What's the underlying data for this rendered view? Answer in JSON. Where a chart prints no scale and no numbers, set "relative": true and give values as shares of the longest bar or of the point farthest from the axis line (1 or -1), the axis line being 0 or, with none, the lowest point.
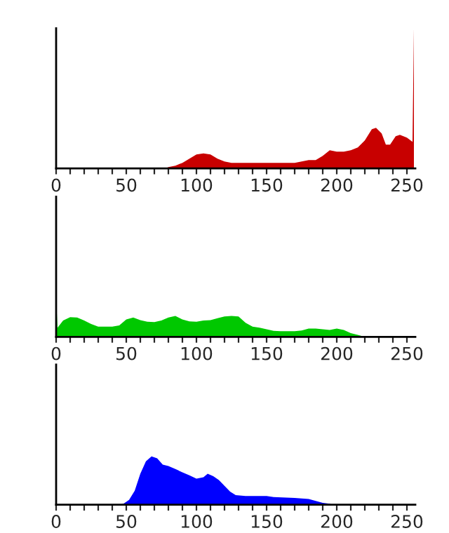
{
  "chart_data": [
    {
      "type": "area",
      "relative": true,
      "xlim": [
        0,
        256
      ],
      "xticks": [
        0,
        {
          "value": 10,
          "label": null
        },
        {
          "value": 20,
          "label": null
        },
        {
          "value": 30,
          "label": null
        },
        {
          "value": 40,
          "label": null
        },
        50,
        {
          "value": 60,
          "label": null
        },
        {
          "value": 70,
          "label": null
        },
        {
          "value": 80,
          "label": null
        },
        {
          "value": 90,
          "label": null
        },
        100,
        {
          "value": 110,
          "label": null
        },
        {
          "value": 120,
          "label": null
        },
        {
          "value": 130,
          "label": null
        },
        {
          "value": 140,
          "label": null
        },
        150,
        {
          "value": 160,
          "label": null
        },
        {
          "value": 170,
          "label": null
        },
        {
          "value": 180,
          "label": null
        },
        {
          "value": 190,
          "label": null
        },
        200,
        {
          "value": 210,
          "label": null
        },
        {
          "value": 220,
          "label": null
        },
        {
          "value": 230,
          "label": null
        },
        {
          "value": 240,
          "label": null
        },
        250
      ],
      "series": [
        {
          "color": "#c80000",
          "x": [
            0,
            78,
            80,
            85,
            90,
            95,
            100,
            105,
            110,
            115,
            120,
            125,
            130,
            140,
            150,
            170,
            180,
            185,
            190,
            195,
            200,
            205,
            210,
            215,
            220,
            225,
            228,
            232,
            235,
            238,
            242,
            245,
            250,
            254,
            255
          ],
          "values": [
            0,
            0,
            0.01,
            0.02,
            0.04,
            0.07,
            0.1,
            0.107,
            0.1,
            0.07,
            0.05,
            0.04,
            0.04,
            0.04,
            0.04,
            0.04,
            0.06,
            0.06,
            0.09,
            0.13,
            0.12,
            0.12,
            0.13,
            0.15,
            0.2,
            0.28,
            0.29,
            0.25,
            0.17,
            0.17,
            0.23,
            0.24,
            0.22,
            0.19,
            1
          ]
        }
      ]
    },
    {
      "type": "area",
      "relative": true,
      "xlim": [
        0,
        256
      ],
      "xticks": [
        0,
        {
          "value": 10,
          "label": null
        },
        {
          "value": 20,
          "label": null
        },
        {
          "value": 30,
          "label": null
        },
        {
          "value": 40,
          "label": null
        },
        50,
        {
          "value": 60,
          "label": null
        },
        {
          "value": 70,
          "label": null
        },
        {
          "value": 80,
          "label": null
        },
        {
          "value": 90,
          "label": null
        },
        100,
        {
          "value": 110,
          "label": null
        },
        {
          "value": 120,
          "label": null
        },
        {
          "value": 130,
          "label": null
        },
        {
          "value": 140,
          "label": null
        },
        150,
        {
          "value": 160,
          "label": null
        },
        {
          "value": 170,
          "label": null
        },
        {
          "value": 180,
          "label": null
        },
        {
          "value": 190,
          "label": null
        },
        200,
        {
          "value": 210,
          "label": null
        },
        {
          "value": 220,
          "label": null
        },
        {
          "value": 230,
          "label": null
        },
        {
          "value": 240,
          "label": null
        },
        250
      ],
      "series": [
        {
          "color": "#00c800",
          "x": [
            0,
            1,
            5,
            10,
            15,
            20,
            25,
            30,
            35,
            40,
            45,
            50,
            55,
            60,
            65,
            70,
            75,
            80,
            85,
            90,
            95,
            100,
            105,
            110,
            115,
            120,
            125,
            130,
            135,
            140,
            145,
            150,
            155,
            160,
            170,
            175,
            180,
            185,
            190,
            195,
            200,
            205,
            210,
            215,
            220,
            255
          ],
          "values": [
            1,
            0.24,
            0.43,
            0.52,
            0.51,
            0.43,
            0.34,
            0.27,
            0.27,
            0.27,
            0.3,
            0.46,
            0.51,
            0.44,
            0.4,
            0.39,
            0.43,
            0.51,
            0.55,
            0.46,
            0.41,
            0.4,
            0.43,
            0.44,
            0.49,
            0.54,
            0.55,
            0.54,
            0.37,
            0.27,
            0.24,
            0.2,
            0.16,
            0.15,
            0.15,
            0.17,
            0.22,
            0.22,
            0.2,
            0.18,
            0.22,
            0.18,
            0.1,
            0.05,
            0,
            0
          ]
        }
      ]
    },
    {
      "type": "area",
      "relative": true,
      "xlim": [
        0,
        256
      ],
      "xticks": [
        0,
        {
          "value": 10,
          "label": null
        },
        {
          "value": 20,
          "label": null
        },
        {
          "value": 30,
          "label": null
        },
        {
          "value": 40,
          "label": null
        },
        50,
        {
          "value": 60,
          "label": null
        },
        {
          "value": 70,
          "label": null
        },
        {
          "value": 80,
          "label": null
        },
        {
          "value": 90,
          "label": null
        },
        100,
        {
          "value": 110,
          "label": null
        },
        {
          "value": 120,
          "label": null
        },
        {
          "value": 130,
          "label": null
        },
        {
          "value": 140,
          "label": null
        },
        150,
        {
          "value": 160,
          "label": null
        },
        {
          "value": 170,
          "label": null
        },
        {
          "value": 180,
          "label": null
        },
        {
          "value": 190,
          "label": null
        },
        200,
        {
          "value": 210,
          "label": null
        },
        {
          "value": 220,
          "label": null
        },
        {
          "value": 230,
          "label": null
        },
        {
          "value": 240,
          "label": null
        },
        250
      ],
      "series": [
        {
          "color": "#0000ff",
          "x": [
            0,
            45,
            48,
            52,
            56,
            60,
            64,
            68,
            72,
            76,
            80,
            85,
            90,
            95,
            100,
            105,
            108,
            112,
            116,
            120,
            124,
            128,
            135,
            150,
            155,
            170,
            180,
            185,
            190,
            195,
            197,
            255
          ],
          "values": [
            0,
            0,
            0.02,
            0.1,
            0.29,
            0.64,
            0.9,
            1,
            0.96,
            0.83,
            0.8,
            0.74,
            0.67,
            0.61,
            0.54,
            0.57,
            0.64,
            0.59,
            0.51,
            0.39,
            0.27,
            0.2,
            0.18,
            0.18,
            0.16,
            0.14,
            0.12,
            0.08,
            0.04,
            0.02,
            0,
            0
          ]
        }
      ]
    }
  ]
}
